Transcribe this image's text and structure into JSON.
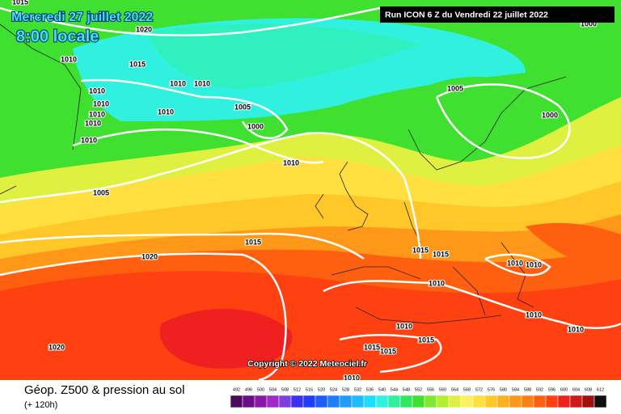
{
  "header": {
    "date": "Mercredi 27 juillet 2022",
    "time": "8:00 locale",
    "run": "Run ICON 6 Z du Vendredi 22 juillet 2022"
  },
  "map": {
    "isobar_labels": [
      "1015",
      "1020",
      "1010",
      "1015",
      "1010",
      "1010",
      "1010",
      "1010",
      "1010",
      "1010",
      "1010",
      "1010",
      "1005",
      "1000",
      "1010",
      "1005",
      "1015",
      "1020",
      "1005",
      "1000",
      "1015",
      "1015",
      "1010",
      "1010",
      "1010",
      "1010",
      "1010",
      "1010",
      "1015",
      "1015",
      "1015",
      "1020",
      "1010",
      "1000"
    ],
    "copyright": "Copyright © 2022 Meteociel.fr"
  },
  "footer": {
    "title": "Géop. Z500 & pression au sol",
    "lead": "(+ 120h)"
  },
  "scale": {
    "labels": [
      492,
      496,
      500,
      504,
      508,
      512,
      516,
      520,
      524,
      528,
      532,
      536,
      540,
      544,
      548,
      552,
      556,
      560,
      564,
      568,
      572,
      576,
      580,
      584,
      588,
      592,
      596,
      600,
      604,
      608,
      612
    ],
    "colors": [
      "#4b0a5e",
      "#6a0f86",
      "#8a19a8",
      "#a229c6",
      "#7f3fe0",
      "#3c2ff0",
      "#1f3cff",
      "#1e5cff",
      "#1e7cff",
      "#1e9cff",
      "#1ebcff",
      "#1edcff",
      "#30f0e0",
      "#30f0a0",
      "#30e860",
      "#40e030",
      "#80e830",
      "#b0f030",
      "#e0f040",
      "#fff060",
      "#ffe040",
      "#ffc828",
      "#ffb020",
      "#ff9818",
      "#ff8010",
      "#ff6010",
      "#ff4010",
      "#f02020",
      "#d01818",
      "#a01010",
      "#101010"
    ]
  }
}
